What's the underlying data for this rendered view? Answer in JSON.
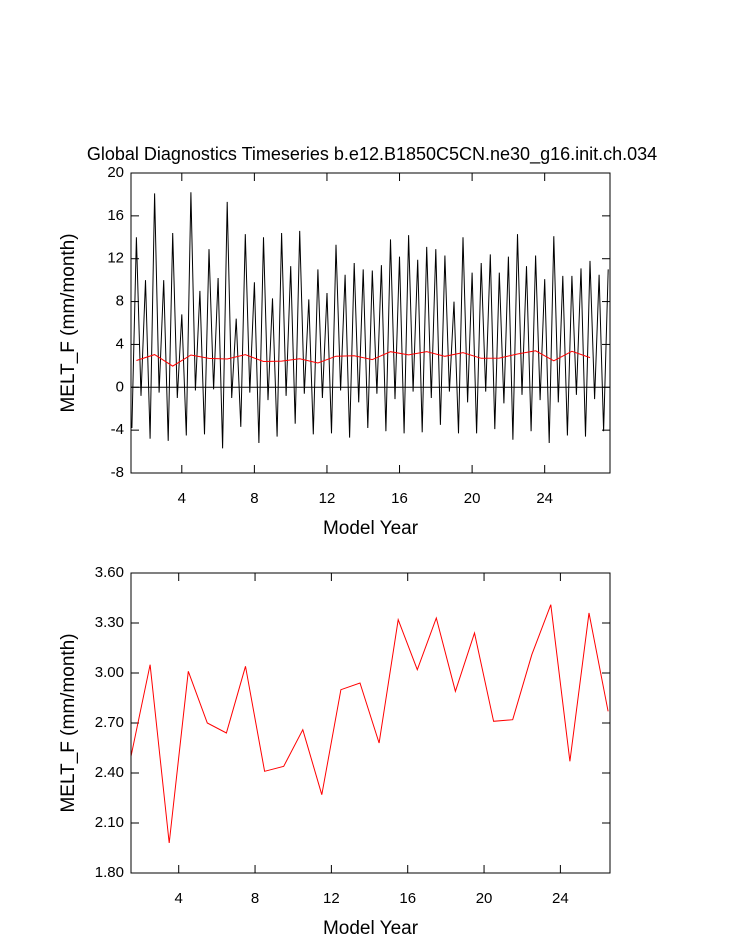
{
  "chart_data": [
    {
      "type": "line",
      "title": "Global Diagnostics Timeseries b.e12.B1850C5CN.ne30_g16.init.ch.034",
      "xlabel": "Model Year",
      "ylabel": "MELT_F (mm/month)",
      "xlim": [
        1.2,
        27.6
      ],
      "xticks": [
        4,
        8,
        12,
        16,
        20,
        24
      ],
      "ylim": [
        -8,
        20
      ],
      "yticks": [
        -8,
        -4,
        0,
        4,
        8,
        12,
        16,
        20
      ],
      "ref_line": 0,
      "series": [
        {
          "name": "monthly",
          "color": "#000000",
          "x": [
            1.25,
            1.5,
            1.75,
            2,
            2.25,
            2.5,
            2.75,
            3,
            3.25,
            3.5,
            3.75,
            4,
            4.25,
            4.5,
            4.75,
            5,
            5.25,
            5.5,
            5.75,
            6,
            6.25,
            6.5,
            6.75,
            7,
            7.25,
            7.5,
            7.75,
            8,
            8.25,
            8.5,
            8.75,
            9,
            9.25,
            9.5,
            9.75,
            10,
            10.25,
            10.5,
            10.75,
            11,
            11.25,
            11.5,
            11.75,
            12,
            12.25,
            12.5,
            12.75,
            13,
            13.25,
            13.5,
            13.75,
            14,
            14.25,
            14.5,
            14.75,
            15,
            15.25,
            15.5,
            15.75,
            16,
            16.25,
            16.5,
            16.75,
            17,
            17.25,
            17.5,
            17.75,
            18,
            18.25,
            18.5,
            18.75,
            19,
            19.25,
            19.5,
            19.75,
            20,
            20.25,
            20.5,
            20.75,
            21,
            21.25,
            21.5,
            21.75,
            22,
            22.25,
            22.5,
            22.75,
            23,
            23.25,
            23.5,
            23.75,
            24,
            24.25,
            24.5,
            24.75,
            25,
            25.25,
            25.5,
            25.75,
            26,
            26.25,
            26.5,
            26.75,
            27,
            27.25,
            27.5
          ],
          "values": [
            -3.8,
            14,
            -0.8,
            10,
            -4.8,
            18.1,
            -0.5,
            10,
            -5,
            14.4,
            -1,
            6.8,
            -4.5,
            18.2,
            -0.3,
            9,
            -4.4,
            12.9,
            -0.2,
            10.2,
            -5.7,
            17.3,
            -1,
            6.4,
            -3.7,
            14.3,
            -0.5,
            9.8,
            -5.2,
            14,
            -1.2,
            8.3,
            -4.6,
            14.4,
            -0.8,
            11.3,
            -3.4,
            14.6,
            -0.6,
            8.2,
            -4.4,
            11,
            -1,
            8.8,
            -4.3,
            13.3,
            -0.3,
            10.5,
            -4.7,
            11.6,
            -1.4,
            11,
            -3.8,
            10.9,
            -0.6,
            11.4,
            -4.1,
            13.8,
            -1.1,
            12.2,
            -4.3,
            14.2,
            -0.4,
            11.9,
            -4.2,
            13.1,
            -1,
            12.9,
            -3.5,
            12.3,
            -0.4,
            8,
            -4.3,
            14,
            -1.4,
            10.7,
            -4.3,
            11.6,
            -0.4,
            12.4,
            -3.9,
            10.7,
            -1.5,
            12.2,
            -4.9,
            14.3,
            -0.7,
            11.3,
            -4.1,
            12.3,
            -1.2,
            10.1,
            -5.2,
            14.1,
            -1.4,
            10.4,
            -4.5,
            10.4,
            -0.7,
            11.1,
            -4.6,
            11.8,
            -1.1,
            10.5,
            -4.1,
            11
          ]
        },
        {
          "name": "annual",
          "color": "#ff0000",
          "x": [
            1.5,
            2.5,
            3.5,
            4.5,
            5.5,
            6.5,
            7.5,
            8.5,
            9.5,
            10.5,
            11.5,
            12.5,
            13.5,
            14.5,
            15.5,
            16.5,
            17.5,
            18.5,
            19.5,
            20.5,
            21.5,
            22.5,
            23.5,
            24.5,
            25.5,
            26.5
          ],
          "values": [
            2.5,
            3.05,
            1.98,
            3.01,
            2.7,
            2.64,
            3.04,
            2.41,
            2.44,
            2.66,
            2.27,
            2.9,
            2.94,
            2.58,
            3.32,
            3.02,
            3.33,
            2.89,
            3.24,
            2.71,
            2.72,
            3.11,
            3.41,
            2.47,
            3.36,
            2.77
          ]
        }
      ]
    },
    {
      "type": "line",
      "xlabel": "Model Year",
      "ylabel": "MELT_F (mm/month)",
      "xlim": [
        1.5,
        26.6
      ],
      "xticks": [
        4,
        8,
        12,
        16,
        20,
        24
      ],
      "ylim": [
        1.8,
        3.6
      ],
      "yticks": [
        {
          "value": 1.8,
          "label": "1.80"
        },
        {
          "value": 2.1,
          "label": "2.10"
        },
        {
          "value": 2.4,
          "label": "2.40"
        },
        {
          "value": 2.7,
          "label": "2.70"
        },
        {
          "value": 3.0,
          "label": "3.00"
        },
        {
          "value": 3.3,
          "label": "3.30"
        },
        {
          "value": 3.6,
          "label": "3.60"
        }
      ],
      "series": [
        {
          "name": "annual",
          "color": "#ff0000",
          "x": [
            1.5,
            2.5,
            3.5,
            4.5,
            5.5,
            6.5,
            7.5,
            8.5,
            9.5,
            10.5,
            11.5,
            12.5,
            13.5,
            14.5,
            15.5,
            16.5,
            17.5,
            18.5,
            19.5,
            20.5,
            21.5,
            22.5,
            23.5,
            24.5,
            25.5,
            26.5
          ],
          "values": [
            2.5,
            3.05,
            1.98,
            3.01,
            2.7,
            2.64,
            3.04,
            2.41,
            2.44,
            2.66,
            2.27,
            2.9,
            2.94,
            2.58,
            3.32,
            3.02,
            3.33,
            2.89,
            3.24,
            2.71,
            2.72,
            3.11,
            3.41,
            2.47,
            3.36,
            2.77
          ]
        }
      ]
    }
  ]
}
